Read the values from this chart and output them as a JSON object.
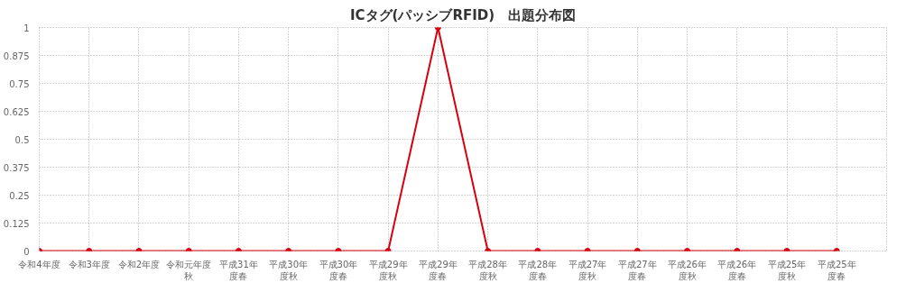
{
  "chart_data": {
    "type": "line",
    "title": "ICタグ(パッシブRFID)　出題分布図",
    "categories": [
      "令和4年度",
      "令和3年度",
      "令和2年度",
      "令和元年度秋",
      "平成31年度春",
      "平成30年度秋",
      "平成30年度春",
      "平成29年度秋",
      "平成29年度春",
      "平成28年度秋",
      "平成28年度春",
      "平成27年度秋",
      "平成27年度春",
      "平成26年度秋",
      "平成26年度春",
      "平成25年度秋",
      "平成25年度春"
    ],
    "series": [
      {
        "color": "#d7000f",
        "values": [
          0,
          0,
          0,
          0,
          0,
          0,
          0,
          0,
          1,
          0,
          0,
          0,
          0,
          0,
          0,
          0,
          0
        ]
      }
    ],
    "ylim": [
      0,
      1
    ],
    "yticks": [
      0,
      0.125,
      0.25,
      0.375,
      0.5,
      0.625,
      0.75,
      0.875,
      1
    ],
    "grid": true,
    "marker": "circle",
    "line_style": "solid"
  }
}
